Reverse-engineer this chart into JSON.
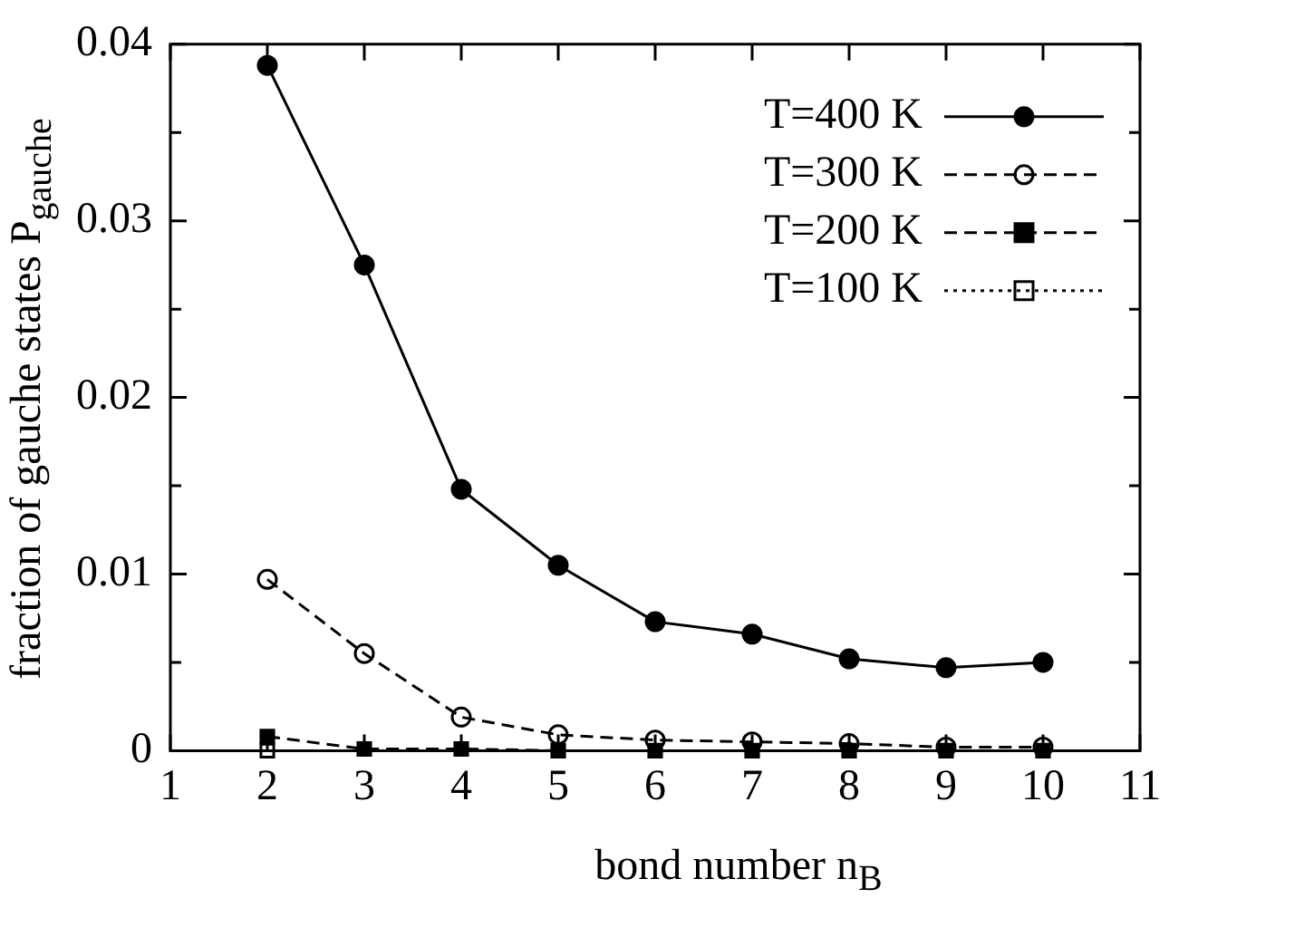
{
  "chart_data": {
    "type": "line",
    "xlabel": "bond number n$_{B}$",
    "ylabel": "fraction of gauche states P$_{gauche}$",
    "x": [
      2,
      3,
      4,
      5,
      6,
      7,
      8,
      9,
      10
    ],
    "series": [
      {
        "name": "T=400 K",
        "color": "#000000",
        "marker": "circle",
        "line_style": "solid",
        "values": [
          0.0388,
          0.0275,
          0.0148,
          0.0105,
          0.0073,
          0.0066,
          0.0052,
          0.0047,
          0.005
        ]
      },
      {
        "name": "T=300 K",
        "color": "#000000",
        "marker": "circle",
        "line_style": "dashed",
        "values": [
          0.0097,
          0.0055,
          0.0019,
          0.0009,
          0.0006,
          0.0005,
          0.0004,
          0.0002,
          0.0002
        ]
      },
      {
        "name": "T=200 K",
        "color": "#000000",
        "marker": "square",
        "line_style": "dashed",
        "values": [
          0.0008,
          0.0001,
          0.0001,
          0,
          0,
          0,
          0,
          0,
          0
        ]
      },
      {
        "name": "T=100 K",
        "color": "#000000",
        "marker": "square",
        "line_style": "dotted",
        "values": [
          0,
          null,
          null,
          null,
          null,
          null,
          null,
          null,
          null
        ]
      }
    ],
    "xlim": [
      1,
      11
    ],
    "xticks": [
      1,
      2,
      3,
      4,
      5,
      6,
      7,
      8,
      9,
      10,
      11
    ],
    "ylim": [
      0,
      0.04
    ],
    "yticks": [
      0,
      {
        "value": 0.005,
        "label": null
      },
      0.01,
      {
        "value": 0.015,
        "label": null
      },
      0.02,
      {
        "value": 0.025,
        "label": null
      },
      0.03,
      {
        "value": 0.035,
        "label": null
      },
      0.04
    ],
    "legend": "top right",
    "grid": false
  }
}
